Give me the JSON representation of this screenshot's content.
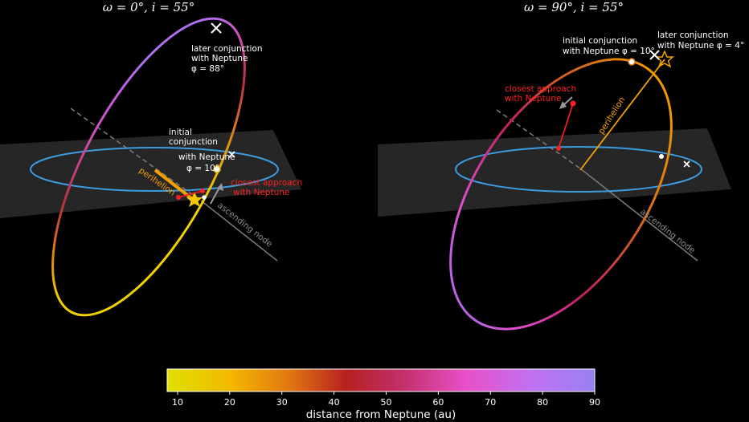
{
  "panels": [
    {
      "title": "ω = 0°, i = 55°",
      "later_conjunction": [
        "later conjunction",
        "with Neptune",
        "φ = 88°"
      ],
      "initial_conjunction": [
        "initial",
        "conjunction",
        "with Neptune",
        "φ = 10°"
      ],
      "closest_approach": [
        "closest approach",
        "with Neptune"
      ],
      "perihelion": "perihelion",
      "ascending_node": "ascending node"
    },
    {
      "title": "ω = 90°, i = 55°",
      "initial_conjunction": [
        "initial conjunction",
        "with Neptune φ = 10°"
      ],
      "later_conjunction": [
        "later conjunction",
        "with Neptune φ = 4°"
      ],
      "closest_approach": [
        "closest approach",
        "with Neptune"
      ],
      "perihelion": "perihelion",
      "ascending_node": "ascending node"
    }
  ],
  "colorbar": {
    "label": "distance from Neptune (au)",
    "ticks": [
      "10",
      "20",
      "30",
      "40",
      "50",
      "60",
      "70",
      "80",
      "90"
    ],
    "min": 8,
    "max": 90,
    "stops": [
      "#e0e000",
      "#f3b800",
      "#e37a10",
      "#b52020",
      "#c2306a",
      "#e850c8",
      "#c070f0",
      "#9a80f4"
    ]
  }
}
